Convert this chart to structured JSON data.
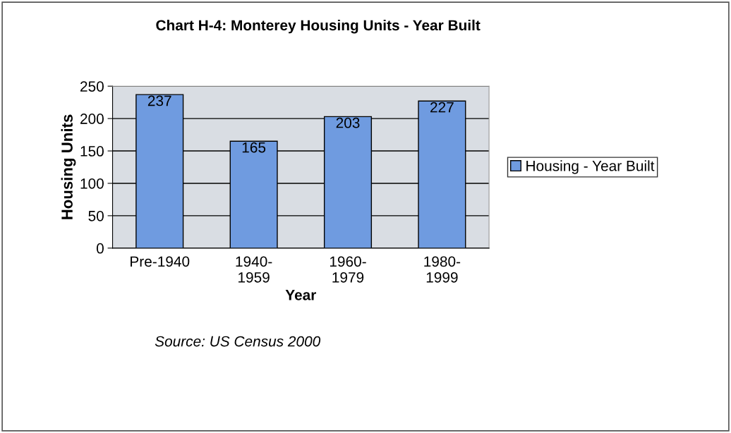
{
  "chart_data": {
    "type": "bar",
    "title": "Chart H-4: Monterey Housing Units - Year Built",
    "categories": [
      "Pre-1940",
      "1940-\n1959",
      "1960-\n1979",
      "1980-\n1999"
    ],
    "series": [
      {
        "name": "Housing - Year Built",
        "color": "#6f9be0",
        "values": [
          237,
          165,
          203,
          227
        ]
      }
    ],
    "xlabel": "Year",
    "ylabel": "Housing Units",
    "ylim": [
      0,
      250
    ],
    "yticks": [
      0,
      50,
      100,
      150,
      200,
      250
    ],
    "grid": "y",
    "legend": "right",
    "data_labels": true,
    "annotations": [
      "Source: US Census 2000"
    ]
  }
}
